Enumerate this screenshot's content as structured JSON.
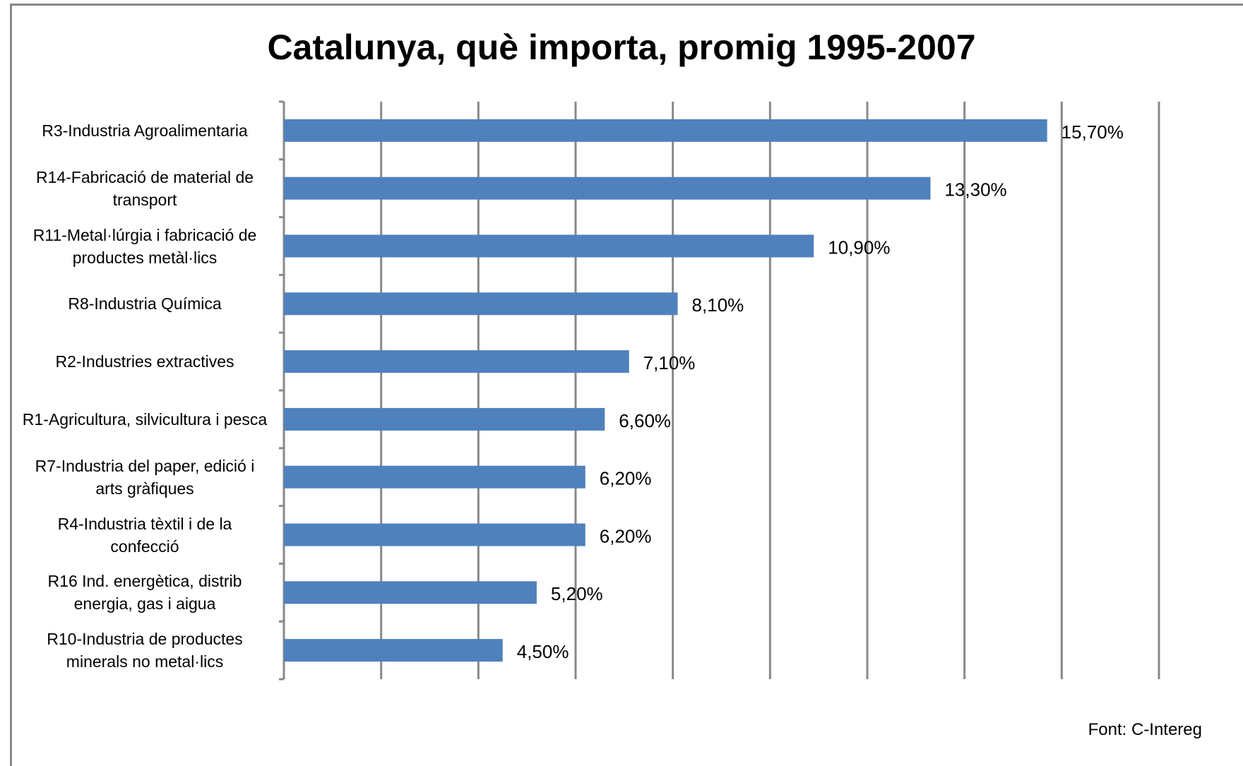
{
  "chart_data": {
    "type": "bar",
    "orientation": "horizontal",
    "title": "Catalunya, què importa, promig 1995-2007",
    "categories": [
      "R3-Industria Agroalimentaria",
      "R14-Fabricació de material de transport",
      "R11-Metal·lúrgia i fabricació de productes metàl·lics",
      "R8-Industria Química",
      "R2-Industries extractives",
      "R1-Agricultura, silvicultura i pesca",
      "R7-Industria del paper, edició i arts gràfiques",
      "R4-Industria tèxtil i de la confecció",
      "R16 Ind. energètica, distrib energia, gas i aigua",
      "R10-Industria de productes minerals no metal·lics"
    ],
    "values": [
      15.7,
      13.3,
      10.9,
      8.1,
      7.1,
      6.6,
      6.2,
      6.2,
      5.2,
      4.5
    ],
    "value_labels": [
      "15,70%",
      "13,30%",
      "10,90%",
      "8,10%",
      "7,10%",
      "6,60%",
      "6,20%",
      "6,20%",
      "5,20%",
      "4,50%"
    ],
    "color": "#4f81bd",
    "xlim": [
      0,
      18
    ],
    "xticks": [
      0,
      2,
      4,
      6,
      8,
      10,
      12,
      14,
      16,
      18
    ],
    "grid": true,
    "source": "Font:  C-Intereg"
  }
}
